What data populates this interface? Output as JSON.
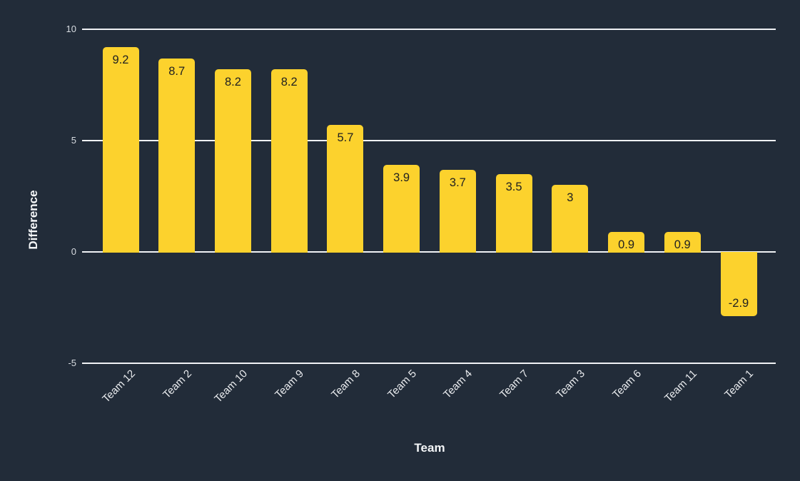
{
  "chart_data": {
    "type": "bar",
    "title": "",
    "xlabel": "Team",
    "ylabel": "Difference",
    "categories": [
      "Team 12",
      "Team 2",
      "Team 10",
      "Team 9",
      "Team 8",
      "Team 5",
      "Team 4",
      "Team 7",
      "Team 3",
      "Team 6",
      "Team 11",
      "Team 1"
    ],
    "values": [
      9.2,
      8.7,
      8.2,
      8.2,
      5.7,
      3.9,
      3.7,
      3.5,
      3,
      0.9,
      0.9,
      -2.9
    ],
    "value_labels": [
      "9.2",
      "8.7",
      "8.2",
      "8.2",
      "5.7",
      "3.9",
      "3.7",
      "3.5",
      "3",
      "0.9",
      "0.9",
      "-2.9"
    ],
    "yticks": [
      10,
      5,
      0,
      -5
    ],
    "ytick_labels": [
      "10",
      "5",
      "0",
      "-5"
    ],
    "ylim": [
      -5,
      10
    ],
    "grid": true,
    "legend": "none",
    "colors": {
      "background": "#222C39",
      "bar": "#FCD22D",
      "gridline": "#F0F2F5",
      "data_label": "#212121",
      "tick_text": "#D8DCE1",
      "category_text": "#E9EBEE",
      "axis_title_text": "#F4F6F8"
    }
  }
}
